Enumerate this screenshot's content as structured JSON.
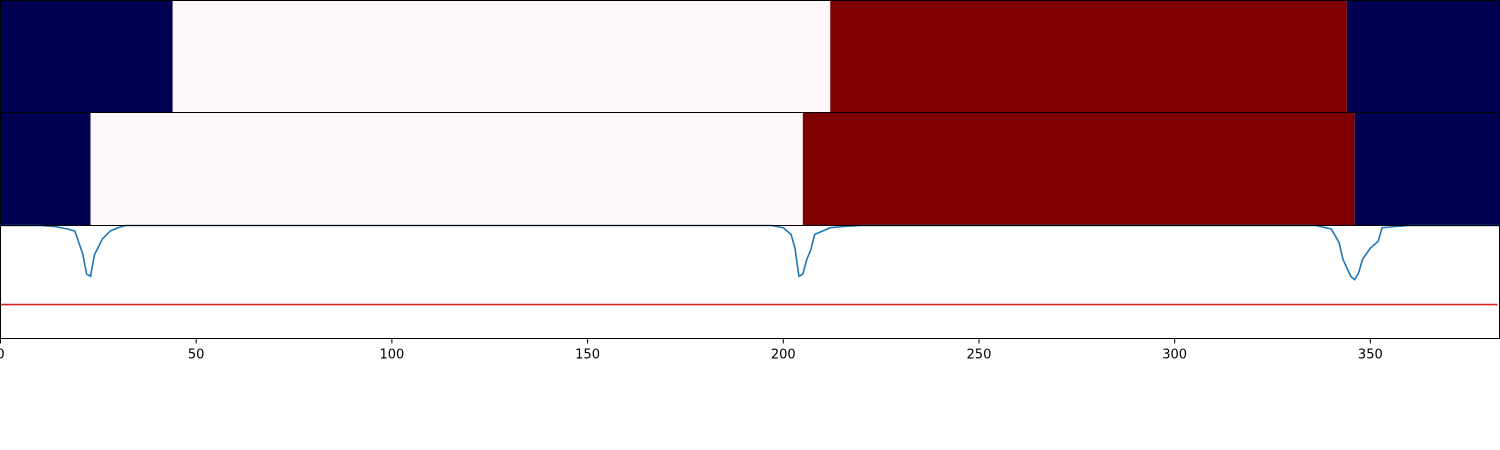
{
  "chart_data": {
    "type": "heatmap",
    "x_range": [
      0,
      383
    ],
    "grid": false,
    "colors": {
      "low": "#000050",
      "mid": "#fff8fb",
      "high": "#7f0000",
      "line": "#1f77b4",
      "threshold": "#d62728"
    },
    "panels": [
      {
        "kind": "segment-strip",
        "segments": [
          {
            "start": 0,
            "end": 44,
            "level": "low"
          },
          {
            "start": 44,
            "end": 212,
            "level": "mid"
          },
          {
            "start": 212,
            "end": 344,
            "level": "high"
          },
          {
            "start": 344,
            "end": 383,
            "level": "low"
          }
        ]
      },
      {
        "kind": "segment-strip",
        "segments": [
          {
            "start": 0,
            "end": 23,
            "level": "low"
          },
          {
            "start": 23,
            "end": 205,
            "level": "mid"
          },
          {
            "start": 205,
            "end": 346,
            "level": "high"
          },
          {
            "start": 346,
            "end": 383,
            "level": "low"
          }
        ]
      },
      {
        "kind": "line",
        "ylim": [
          -1.0,
          0.0
        ],
        "threshold": -0.7,
        "points": [
          [
            0,
            0.0
          ],
          [
            10,
            0.0
          ],
          [
            14,
            -0.01
          ],
          [
            17,
            -0.03
          ],
          [
            19,
            -0.05
          ],
          [
            21,
            -0.25
          ],
          [
            22,
            -0.43
          ],
          [
            23,
            -0.45
          ],
          [
            24,
            -0.26
          ],
          [
            26,
            -0.12
          ],
          [
            28,
            -0.05
          ],
          [
            30,
            -0.02
          ],
          [
            32,
            0.0
          ],
          [
            50,
            0.0
          ],
          [
            190,
            0.0
          ],
          [
            197,
            0.0
          ],
          [
            200,
            -0.02
          ],
          [
            202,
            -0.08
          ],
          [
            203,
            -0.2
          ],
          [
            204,
            -0.45
          ],
          [
            205,
            -0.43
          ],
          [
            206,
            -0.3
          ],
          [
            207,
            -0.22
          ],
          [
            208,
            -0.08
          ],
          [
            210,
            -0.05
          ],
          [
            212,
            -0.02
          ],
          [
            215,
            -0.01
          ],
          [
            220,
            0.0
          ],
          [
            300,
            0.0
          ],
          [
            336,
            0.0
          ],
          [
            340,
            -0.03
          ],
          [
            342,
            -0.15
          ],
          [
            343,
            -0.3
          ],
          [
            345,
            -0.45
          ],
          [
            346,
            -0.48
          ],
          [
            347,
            -0.42
          ],
          [
            348,
            -0.3
          ],
          [
            350,
            -0.2
          ],
          [
            351,
            -0.17
          ],
          [
            352,
            -0.14
          ],
          [
            353,
            -0.02
          ],
          [
            356,
            -0.01
          ],
          [
            360,
            0.0
          ],
          [
            383,
            0.0
          ]
        ]
      }
    ],
    "x_ticks": [
      0,
      50,
      100,
      150,
      200,
      250,
      300,
      350
    ]
  }
}
